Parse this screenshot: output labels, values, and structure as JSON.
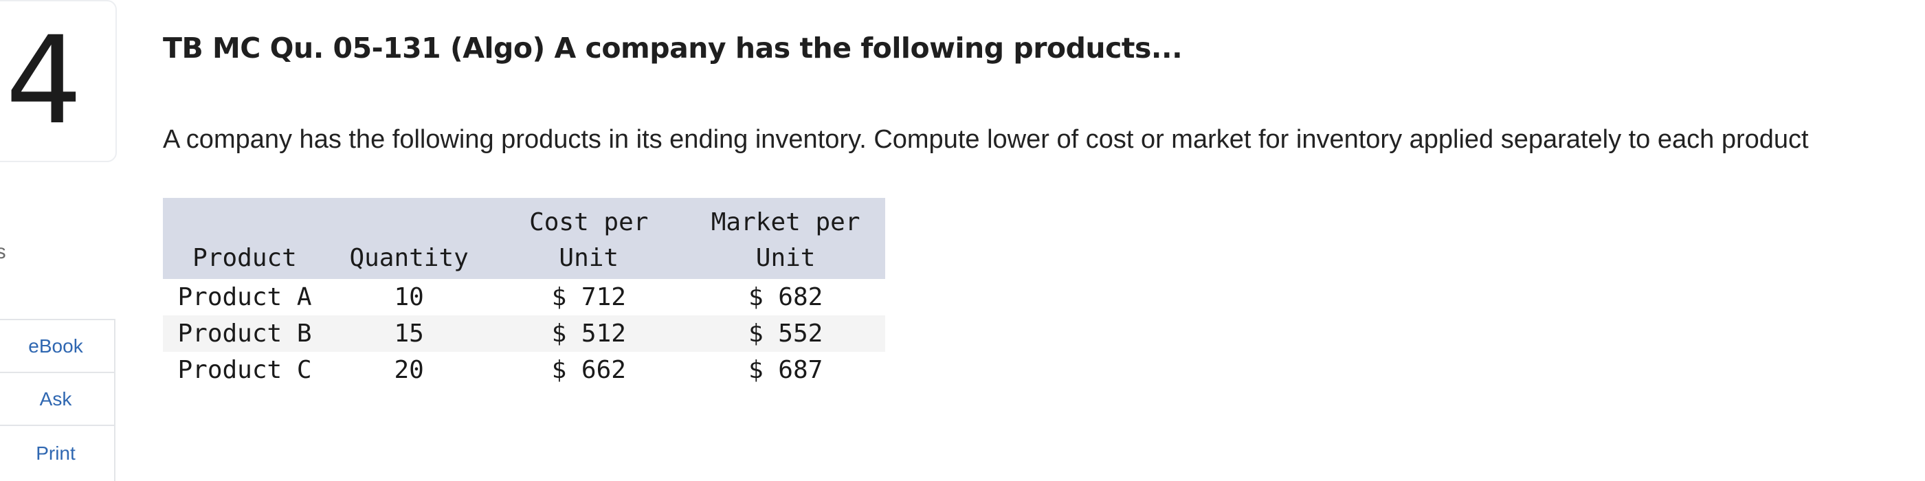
{
  "question": {
    "number": "4",
    "points_label": "ints",
    "title": "TB MC Qu. 05-131 (Algo) A company has the following products...",
    "prompt": "A company has the following products in its ending inventory. Compute lower of cost or market for inventory applied separately to each product"
  },
  "side_actions": {
    "ebook": "eBook",
    "ask": "Ask",
    "print": "Print"
  },
  "table": {
    "headers": {
      "product": "Product",
      "quantity": "Quantity",
      "cost_line1": "Cost per",
      "cost_line2": "Unit",
      "market_line1": "Market per",
      "market_line2": "Unit"
    },
    "rows": [
      {
        "product": "Product A",
        "quantity": "10",
        "cost": "$ 712",
        "market": "$ 682"
      },
      {
        "product": "Product B",
        "quantity": "15",
        "cost": "$ 512",
        "market": "$ 552"
      },
      {
        "product": "Product C",
        "quantity": "20",
        "cost": "$ 662",
        "market": "$ 687"
      }
    ]
  },
  "colors": {
    "header_bg": "#d7dbe7",
    "stripe_bg": "#f4f4f4",
    "link": "#2f67b1"
  }
}
